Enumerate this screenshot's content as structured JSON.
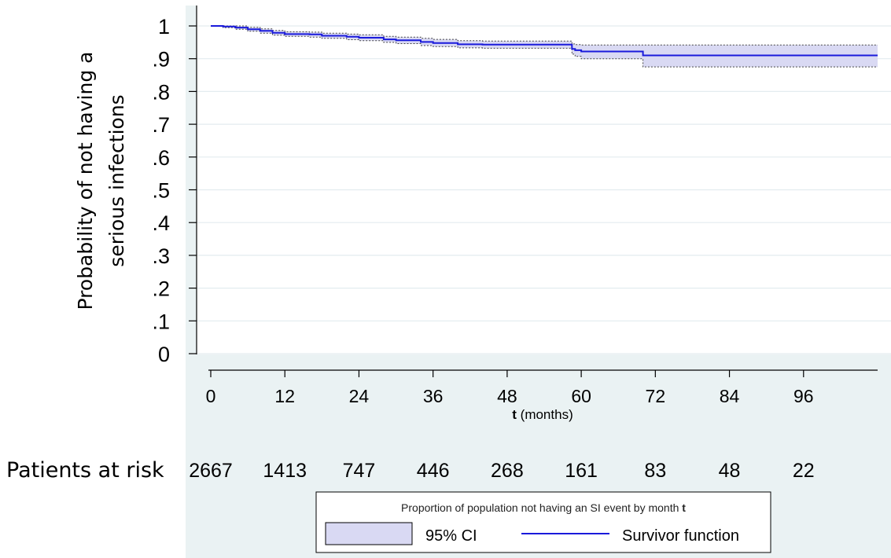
{
  "chart_data": {
    "type": "line",
    "ylabel_line1": "Probability of not having a",
    "ylabel_line2": "serious infections",
    "xlabel_bold": "t",
    "xlabel_rest": "(months)",
    "yticks": [
      0,
      0.1,
      0.2,
      0.3,
      0.4,
      0.5,
      0.6,
      0.7,
      0.8,
      0.9,
      1
    ],
    "ytick_labels": [
      "0",
      ".1",
      ".2",
      ".3",
      ".4",
      ".5",
      ".6",
      ".7",
      ".8",
      ".9",
      "1"
    ],
    "xticks": [
      0,
      12,
      24,
      36,
      48,
      60,
      72,
      84,
      96
    ],
    "ylim": [
      0,
      1
    ],
    "xlim": [
      0,
      108
    ],
    "grid": true,
    "series": [
      {
        "name": "Survivor function",
        "color": "#1a1adb",
        "x": [
          0,
          2,
          4,
          6,
          8,
          10,
          12,
          16,
          18,
          22,
          24,
          28,
          30,
          34,
          36,
          40,
          44,
          48,
          52,
          56,
          58,
          58.5,
          59,
          60,
          70,
          108
        ],
        "y": [
          1.0,
          0.998,
          0.995,
          0.99,
          0.985,
          0.979,
          0.975,
          0.974,
          0.97,
          0.967,
          0.964,
          0.959,
          0.956,
          0.951,
          0.948,
          0.944,
          0.943,
          0.943,
          0.943,
          0.943,
          0.943,
          0.93,
          0.926,
          0.922,
          0.91,
          0.91
        ],
        "ci_lower": [
          1.0,
          0.995,
          0.99,
          0.984,
          0.978,
          0.972,
          0.968,
          0.966,
          0.962,
          0.958,
          0.955,
          0.95,
          0.946,
          0.94,
          0.937,
          0.933,
          0.932,
          0.932,
          0.932,
          0.932,
          0.932,
          0.914,
          0.907,
          0.9,
          0.875,
          0.875
        ],
        "ci_upper": [
          1.0,
          1.0,
          1.0,
          0.996,
          0.991,
          0.986,
          0.982,
          0.981,
          0.978,
          0.975,
          0.973,
          0.968,
          0.966,
          0.962,
          0.959,
          0.955,
          0.954,
          0.954,
          0.954,
          0.954,
          0.954,
          0.945,
          0.943,
          0.942,
          0.942,
          0.942
        ]
      }
    ],
    "ci_fill_color": "#d9d9f3",
    "risk_table": {
      "label": "Patients at risk",
      "x": [
        0,
        12,
        24,
        36,
        48,
        60,
        72,
        84,
        96
      ],
      "values": [
        "2667",
        "1413",
        "747",
        "446",
        "268",
        "161",
        "83",
        "48",
        "22"
      ]
    },
    "legend": {
      "title_text": "Proportion of population not having an SI event by month",
      "title_bold": "t",
      "items": [
        {
          "label": "95% CI"
        },
        {
          "label": "Survivor function"
        }
      ],
      "placement": "bottom"
    }
  }
}
